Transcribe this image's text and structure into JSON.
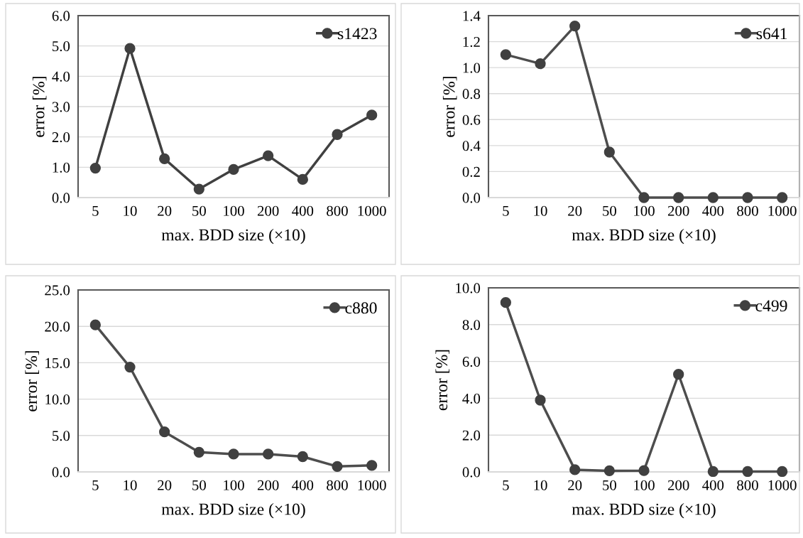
{
  "chart_data": [
    {
      "type": "line",
      "xlabel": "max. BDD size (×10)",
      "ylabel": "error [%]",
      "categories": [
        "5",
        "10",
        "20",
        "50",
        "100",
        "200",
        "400",
        "800",
        "1000"
      ],
      "series": [
        {
          "name": "s1423",
          "color": "#404040",
          "values": [
            0.97,
            4.92,
            1.28,
            0.28,
            0.93,
            1.38,
            0.6,
            2.08,
            2.72
          ]
        }
      ],
      "ylim": [
        0,
        6
      ],
      "yticks": [
        {
          "value": 0,
          "label": "0.0"
        },
        {
          "value": 1,
          "label": "1.0"
        },
        {
          "value": 2,
          "label": "2.0"
        },
        {
          "value": 3,
          "label": "3.0"
        },
        {
          "value": 4,
          "label": "4.0"
        },
        {
          "value": 5,
          "label": "5.0"
        },
        {
          "value": 6,
          "label": "6.0"
        }
      ],
      "grid": "y",
      "legend": "top right",
      "marker": "circle",
      "line_style": "solid"
    },
    {
      "type": "line",
      "xlabel": "max. BDD size (×10)",
      "ylabel": "error [%]",
      "categories": [
        "5",
        "10",
        "20",
        "50",
        "100",
        "200",
        "400",
        "800",
        "1000"
      ],
      "series": [
        {
          "name": "s641",
          "color": "#4d4d4d",
          "values": [
            1.1,
            1.03,
            1.32,
            0.35,
            0,
            0,
            0,
            0,
            0
          ]
        }
      ],
      "ylim": [
        0,
        1.4
      ],
      "yticks": [
        {
          "value": 0,
          "label": "0.0"
        },
        0.2,
        0.4,
        0.6,
        0.8,
        {
          "value": 1,
          "label": "1.0"
        },
        1.2,
        1.4
      ],
      "grid": "y",
      "legend": "top right",
      "marker": "circle",
      "line_style": "solid"
    },
    {
      "type": "line",
      "xlabel": "max. BDD size (×10)",
      "ylabel": "error [%]",
      "categories": [
        "5",
        "10",
        "20",
        "50",
        "100",
        "200",
        "400",
        "800",
        "1000"
      ],
      "series": [
        {
          "name": "c880",
          "color": "#4d4d4d",
          "values": [
            20.2,
            14.4,
            5.5,
            2.7,
            2.45,
            2.45,
            2.1,
            0.75,
            0.9
          ]
        }
      ],
      "ylim": [
        0,
        25
      ],
      "yticks": [
        {
          "value": 0,
          "label": "0.0"
        },
        {
          "value": 5,
          "label": "5.0"
        },
        {
          "value": 10,
          "label": "10.0"
        },
        {
          "value": 15,
          "label": "15.0"
        },
        {
          "value": 20,
          "label": "20.0"
        },
        {
          "value": 25,
          "label": "25.0"
        }
      ],
      "grid": "y",
      "legend": "top right",
      "marker": "circle",
      "line_style": "solid"
    },
    {
      "type": "line",
      "xlabel": "max. BDD size (×10)",
      "ylabel": "error [%]",
      "categories": [
        "5",
        "10",
        "20",
        "50",
        "100",
        "200",
        "400",
        "800",
        "1000"
      ],
      "series": [
        {
          "name": "c499",
          "color": "#4d4d4d",
          "values": [
            9.2,
            3.9,
            0.12,
            0.06,
            0.07,
            5.3,
            0.02,
            0.02,
            0.02
          ]
        }
      ],
      "ylim": [
        0,
        10
      ],
      "yticks": [
        {
          "value": 0,
          "label": "0.0"
        },
        {
          "value": 2,
          "label": "2.0"
        },
        {
          "value": 4,
          "label": "4.0"
        },
        {
          "value": 6,
          "label": "6.0"
        },
        {
          "value": 8,
          "label": "8.0"
        },
        {
          "value": 10,
          "label": "10.0"
        }
      ],
      "grid": "y",
      "legend": "top right",
      "marker": "circle",
      "line_style": "solid"
    }
  ]
}
